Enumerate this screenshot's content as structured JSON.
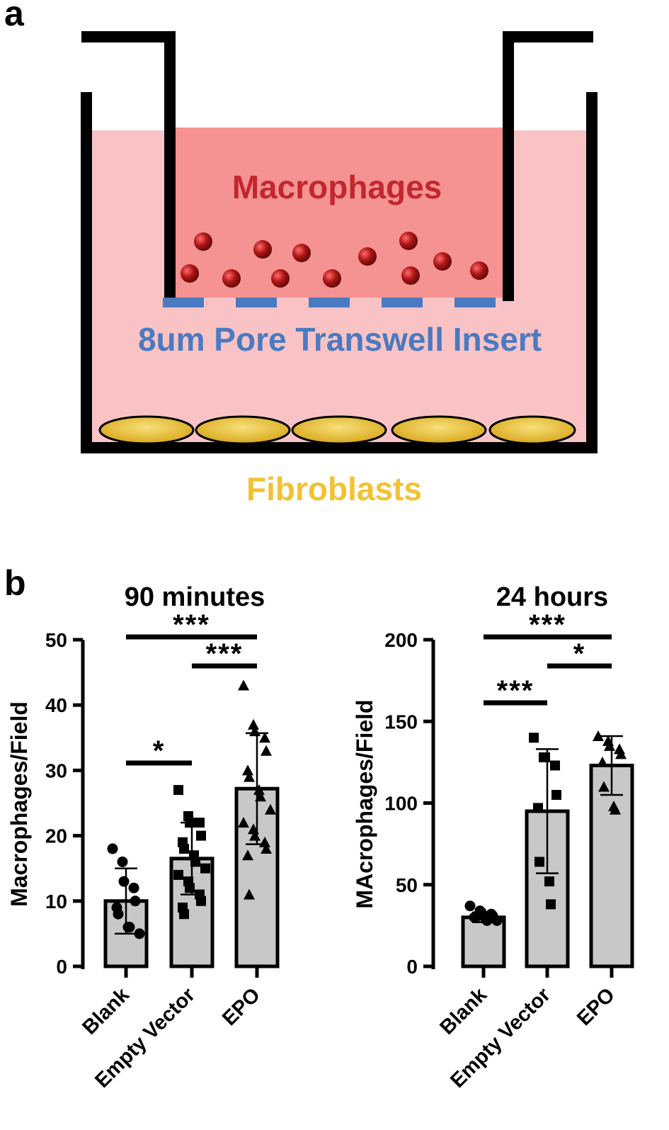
{
  "panel_a": {
    "letter": "a",
    "labels": {
      "macrophages": "Macrophages",
      "insert": "8um Pore Transwell Insert",
      "fibroblasts": "Fibroblasts"
    },
    "colors": {
      "well_medium": "#f9c3c5",
      "insert_medium": "#f59292",
      "macrophage_label": "#c2272d",
      "insert_label": "#4a7ac0",
      "fibroblast_label": "#f2c233",
      "macrophage_cell": "#b01515",
      "fibroblast_cell": "#e8c43a",
      "pore": "#4a7ac0"
    }
  },
  "panel_b": {
    "letter": "b"
  },
  "chart_data": [
    {
      "type": "bar",
      "title": "90 minutes",
      "ylabel": "Macrophages/Field",
      "xlabel": "",
      "ylim": [
        0,
        50
      ],
      "yticks": [
        "0",
        "10",
        "20",
        "30",
        "40",
        "50"
      ],
      "categories": [
        "Blank",
        "Empty Vector",
        "EPO"
      ],
      "values": [
        10,
        16.5,
        27.2
      ],
      "error_sd": [
        5,
        5.5,
        8.5
      ],
      "points": [
        [
          18,
          16,
          13,
          12,
          10,
          9,
          8,
          6,
          6,
          5
        ],
        [
          27,
          23,
          22,
          22,
          20,
          19,
          18,
          17,
          16,
          15,
          14,
          13,
          12,
          11,
          10,
          9,
          8
        ],
        [
          43,
          37,
          36,
          35,
          33,
          30,
          29,
          27,
          26,
          24,
          22,
          21,
          20,
          19,
          18,
          17,
          11
        ]
      ],
      "markers": [
        "circle",
        "square",
        "triangle"
      ],
      "significance": [
        {
          "from": 0,
          "to": 2,
          "label": "***"
        },
        {
          "from": 1,
          "to": 2,
          "label": "***"
        },
        {
          "from": 0,
          "to": 1,
          "label": "*"
        }
      ],
      "bar_color": "#c8c8c8"
    },
    {
      "type": "bar",
      "title": "24 hours",
      "ylabel": "MAcrophages/Field",
      "xlabel": "",
      "ylim": [
        0,
        200
      ],
      "yticks": [
        "0",
        "50",
        "100",
        "150",
        "200"
      ],
      "categories": [
        "Blank",
        "Empty Vector",
        "EPO"
      ],
      "values": [
        30,
        95,
        123
      ],
      "error_sd": [
        3,
        38,
        18
      ],
      "points": [
        [
          37,
          34,
          33,
          32,
          31,
          30,
          30,
          29,
          28,
          28
        ],
        [
          140,
          128,
          128,
          123,
          105,
          97,
          64,
          52,
          38
        ],
        [
          141,
          138,
          135,
          133,
          130,
          125,
          110,
          98,
          96
        ]
      ],
      "markers": [
        "circle",
        "square",
        "triangle"
      ],
      "significance": [
        {
          "from": 0,
          "to": 2,
          "label": "***"
        },
        {
          "from": 1,
          "to": 2,
          "label": "*"
        },
        {
          "from": 0,
          "to": 1,
          "label": "***"
        }
      ],
      "bar_color": "#c8c8c8"
    }
  ]
}
